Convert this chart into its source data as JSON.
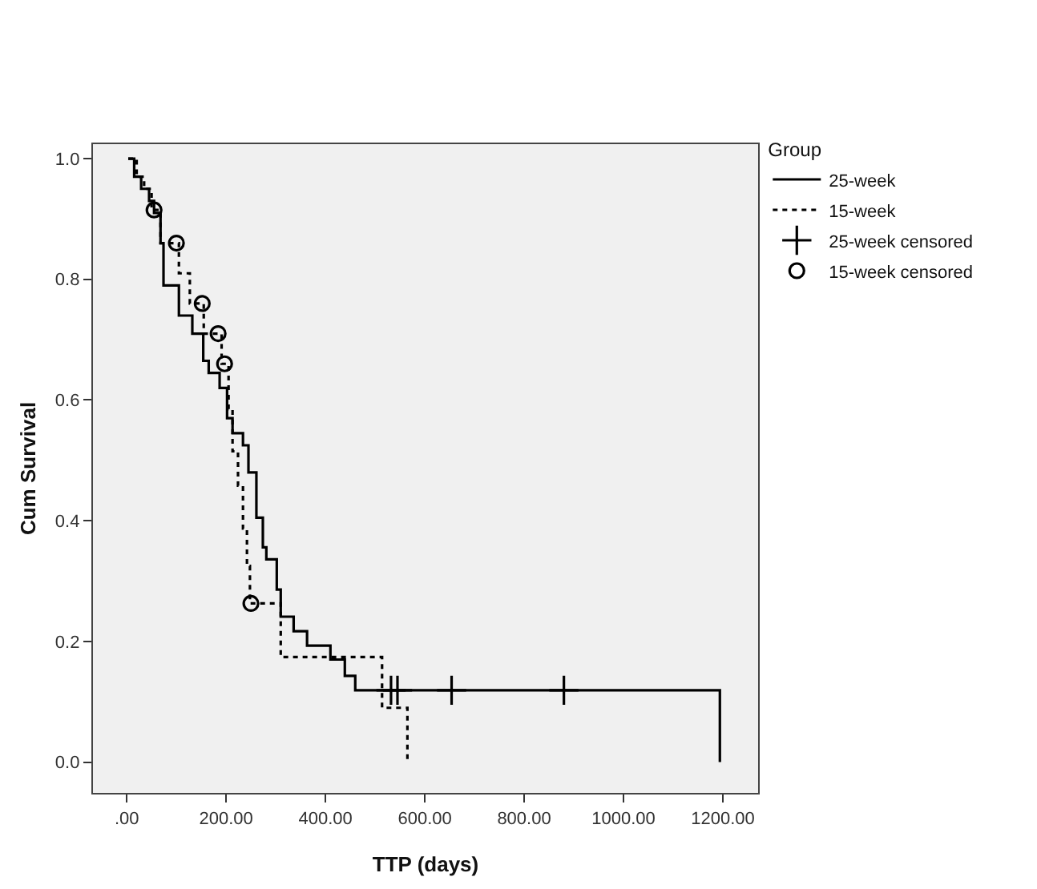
{
  "chart_data": {
    "type": "step",
    "xlabel": "TTP (days)",
    "ylabel": "Cum Survival",
    "legend_title": "Group",
    "legend": "right",
    "xlim": [
      -68,
      1271
    ],
    "ylim": [
      -0.051,
      1.024
    ],
    "xticks": [
      {
        "value": 0,
        "label": ".00"
      },
      {
        "value": 200,
        "label": "200.00"
      },
      {
        "value": 400,
        "label": "400.00"
      },
      {
        "value": 600,
        "label": "600.00"
      },
      {
        "value": 800,
        "label": "800.00"
      },
      {
        "value": 1000,
        "label": "1000.00"
      },
      {
        "value": 1200,
        "label": "1200.00"
      }
    ],
    "yticks": [
      {
        "value": 0,
        "label": "0.0"
      },
      {
        "value": 0.2,
        "label": "0.2"
      },
      {
        "value": 0.4,
        "label": "0.4"
      },
      {
        "value": 0.6,
        "label": "0.6"
      },
      {
        "value": 0.8,
        "label": "0.8"
      },
      {
        "value": 1,
        "label": "1.0"
      }
    ],
    "series": [
      {
        "name": "25-week",
        "color": "#000000",
        "line_style": "solid",
        "x": [
          3,
          15,
          29,
          45,
          55,
          68,
          74,
          105,
          132,
          154,
          165,
          187,
          202,
          213,
          234,
          245,
          261,
          274,
          281,
          302,
          310,
          336,
          363,
          410,
          439,
          460,
          1194
        ],
        "values": [
          1.0,
          0.97,
          0.95,
          0.93,
          0.91,
          0.86,
          0.79,
          0.74,
          0.71,
          0.665,
          0.645,
          0.62,
          0.57,
          0.545,
          0.525,
          0.48,
          0.405,
          0.356,
          0.336,
          0.286,
          0.241,
          0.217,
          0.193,
          0.17,
          0.143,
          0.119,
          0
        ]
      },
      {
        "name": "15-week",
        "color": "#000000",
        "line_style": "dotted",
        "x": [
          3,
          20,
          35,
          50,
          68,
          105,
          127,
          155,
          191,
          205,
          213,
          224,
          234,
          242,
          248,
          310,
          514,
          565
        ],
        "values": [
          1.0,
          0.97,
          0.95,
          0.915,
          0.86,
          0.81,
          0.76,
          0.71,
          0.66,
          0.585,
          0.515,
          0.458,
          0.387,
          0.325,
          0.263,
          0.174,
          0.09,
          0
        ]
      },
      {
        "name": "25-week censored",
        "type": "scatter",
        "color": "#000000",
        "marker": "cross",
        "x": [
          532,
          545,
          654,
          880
        ],
        "values": [
          0.119,
          0.119,
          0.119,
          0.119
        ]
      },
      {
        "name": "15-week censored",
        "type": "scatter",
        "color": "#000000",
        "marker": "circle",
        "x": [
          55,
          100,
          152,
          184,
          197,
          250
        ],
        "values": [
          0.915,
          0.86,
          0.76,
          0.71,
          0.66,
          0.263
        ]
      }
    ]
  }
}
